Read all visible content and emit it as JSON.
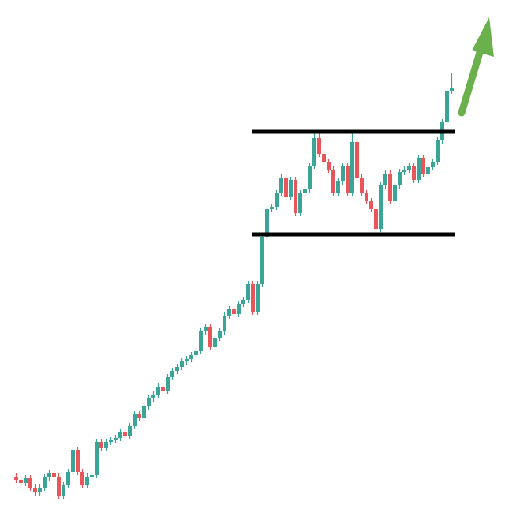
{
  "chart_data": {
    "type": "candlestick",
    "open": [
      36,
      32,
      28,
      34,
      22,
      16,
      22,
      35,
      40,
      36,
      12,
      25,
      42,
      70,
      42,
      25,
      36,
      38,
      80,
      72,
      80,
      82,
      85,
      92,
      88,
      100,
      115,
      110,
      125,
      135,
      140,
      150,
      145,
      162,
      170,
      175,
      182,
      185,
      190,
      195,
      220,
      225,
      200,
      212,
      220,
      240,
      248,
      242,
      255,
      260,
      280,
      245,
      280,
      340,
      375,
      378,
      395,
      415,
      390,
      412,
      370,
      395,
      400,
      430,
      465,
      445,
      435,
      425,
      395,
      410,
      430,
      395,
      460,
      415,
      395,
      385,
      375,
      350,
      405,
      420,
      385,
      405,
      422,
      425,
      430,
      412,
      440,
      420,
      428,
      435,
      462,
      485,
      525
    ],
    "high": [
      40,
      36,
      38,
      38,
      26,
      26,
      39,
      44,
      44,
      40,
      29,
      46,
      74,
      74,
      46,
      40,
      42,
      84,
      84,
      84,
      86,
      89,
      96,
      96,
      104,
      119,
      119,
      129,
      139,
      144,
      154,
      154,
      166,
      174,
      179,
      186,
      189,
      194,
      199,
      224,
      229,
      229,
      216,
      224,
      244,
      252,
      252,
      259,
      264,
      284,
      284,
      284,
      344,
      379,
      382,
      399,
      419,
      419,
      416,
      416,
      399,
      404,
      434,
      475,
      475,
      449,
      439,
      429,
      414,
      434,
      434,
      475,
      464,
      419,
      399,
      389,
      379,
      409,
      424,
      424,
      409,
      426,
      429,
      434,
      434,
      444,
      444,
      432,
      439,
      466,
      489,
      529,
      548
    ],
    "low": [
      28,
      24,
      24,
      18,
      12,
      12,
      18,
      31,
      32,
      8,
      8,
      21,
      38,
      38,
      21,
      21,
      32,
      34,
      68,
      68,
      76,
      78,
      81,
      84,
      84,
      96,
      106,
      106,
      121,
      131,
      136,
      141,
      141,
      158,
      166,
      171,
      178,
      181,
      186,
      191,
      216,
      196,
      196,
      208,
      216,
      236,
      238,
      238,
      251,
      256,
      241,
      241,
      276,
      336,
      371,
      374,
      391,
      386,
      386,
      366,
      366,
      391,
      396,
      426,
      441,
      431,
      421,
      391,
      391,
      406,
      391,
      391,
      411,
      391,
      381,
      371,
      343,
      346,
      401,
      381,
      381,
      401,
      418,
      421,
      408,
      408,
      416,
      416,
      424,
      431,
      458,
      481,
      521
    ],
    "close": [
      32,
      28,
      34,
      22,
      16,
      22,
      35,
      40,
      36,
      12,
      25,
      42,
      70,
      42,
      25,
      36,
      38,
      80,
      72,
      80,
      82,
      85,
      92,
      88,
      100,
      115,
      110,
      125,
      135,
      140,
      150,
      145,
      162,
      170,
      175,
      182,
      185,
      190,
      195,
      220,
      225,
      200,
      212,
      220,
      240,
      248,
      242,
      255,
      260,
      280,
      245,
      280,
      340,
      375,
      378,
      395,
      415,
      390,
      412,
      370,
      395,
      400,
      430,
      465,
      445,
      435,
      425,
      395,
      410,
      430,
      395,
      460,
      415,
      395,
      385,
      375,
      350,
      405,
      420,
      385,
      405,
      422,
      425,
      430,
      412,
      440,
      420,
      428,
      435,
      462,
      485,
      525,
      528
    ],
    "up_color": "#3aa597",
    "down_color": "#e8555a",
    "levels": [
      473,
      343
    ],
    "level_color": "#000000",
    "ylim": [
      0,
      640
    ]
  }
}
